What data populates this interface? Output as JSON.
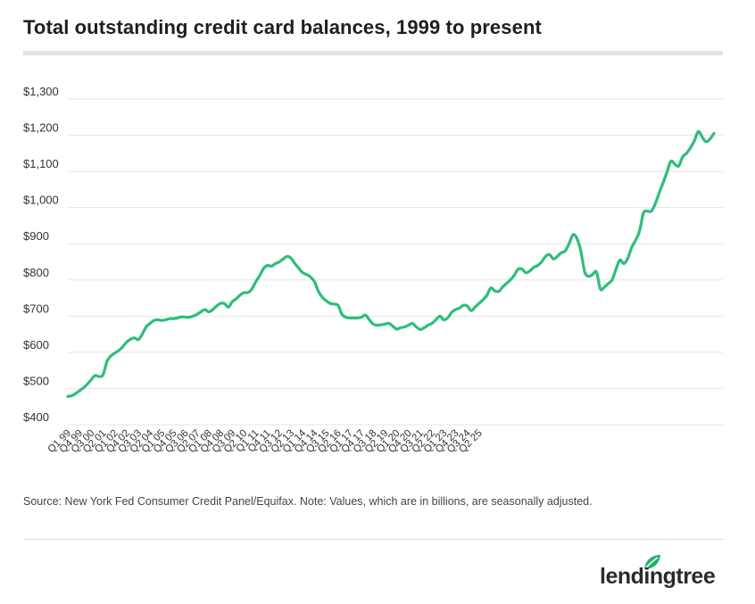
{
  "title": "Total outstanding credit card balances, 1999 to present",
  "note": "Source: New York Fed Consumer Credit Panel/Equifax. Note: Values, which are in billions, are seasonally adjusted.",
  "logo": {
    "text": "lendingtree"
  },
  "colors": {
    "line": "#2dbe7a",
    "grid": "#e6e6e6",
    "logo_leaf": "#27b06b"
  },
  "chart_data": {
    "type": "line",
    "title": "Total outstanding credit card balances, 1999 to present",
    "xlabel": "",
    "ylabel": "",
    "ylim": [
      400,
      1300
    ],
    "grid": true,
    "y_ticks": [
      400,
      500,
      600,
      700,
      800,
      900,
      1000,
      1100,
      1200,
      1300
    ],
    "y_tick_labels": [
      "$400",
      "$500",
      "$600",
      "$700",
      "$800",
      "$900",
      "$1,000",
      "$1,100",
      "$1,200",
      "$1,300"
    ],
    "x_tick_labels": [
      "Q1 99",
      "Q4 99",
      "Q3 00",
      "Q2 01",
      "Q1 02",
      "Q4 02",
      "Q3 03",
      "Q2 04",
      "Q1 05",
      "Q4 05",
      "Q3 06",
      "Q2 07",
      "Q1 08",
      "Q4 08",
      "Q3 09",
      "Q2 10",
      "Q1 11",
      "Q4 11",
      "Q3 12",
      "Q2 13",
      "Q1 14",
      "Q4 14",
      "Q3 15",
      "Q2 16",
      "Q1 17",
      "Q4 17",
      "Q3 18",
      "Q2 19",
      "Q1 20",
      "Q4 20",
      "Q3 21",
      "Q2 22",
      "Q1 23",
      "Q4 23",
      "Q3 24",
      "Q2 25"
    ],
    "x_tick_every": 3,
    "series": [
      {
        "values": [
          478,
          480,
          486,
          494,
          502,
          512,
          525,
          536,
          533,
          538,
          575,
          590,
          598,
          605,
          615,
          628,
          636,
          640,
          635,
          650,
          670,
          680,
          688,
          690,
          688,
          690,
          693,
          693,
          695,
          698,
          697,
          697,
          700,
          705,
          712,
          718,
          712,
          718,
          728,
          735,
          735,
          725,
          740,
          748,
          758,
          765,
          765,
          775,
          795,
          812,
          832,
          840,
          838,
          845,
          850,
          858,
          865,
          860,
          845,
          832,
          820,
          815,
          808,
          795,
          768,
          752,
          742,
          735,
          733,
          730,
          705,
          697,
          695,
          695,
          695,
          697,
          703,
          690,
          678,
          675,
          676,
          678,
          680,
          672,
          664,
          668,
          670,
          675,
          680,
          670,
          663,
          668,
          675,
          680,
          690,
          700,
          690,
          695,
          710,
          718,
          722,
          730,
          728,
          715,
          725,
          735,
          745,
          757,
          778,
          770,
          768,
          780,
          790,
          800,
          813,
          830,
          830,
          820,
          825,
          835,
          840,
          850,
          865,
          870,
          858,
          865,
          875,
          880,
          900,
          925,
          915,
          880,
          822,
          810,
          815,
          822,
          775,
          780,
          790,
          800,
          830,
          855,
          845,
          860,
          890,
          910,
          935,
          985,
          990,
          990,
          1010,
          1040,
          1068,
          1098,
          1128,
          1120,
          1115,
          1140,
          1150,
          1165,
          1185,
          1210,
          1195,
          1182,
          1190,
          1205
        ]
      }
    ]
  }
}
